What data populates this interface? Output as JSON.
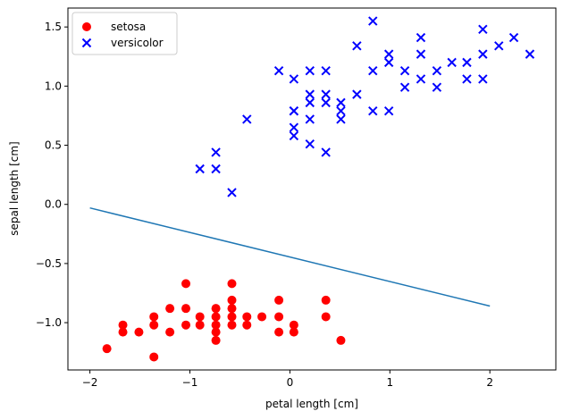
{
  "chart_data": {
    "type": "scatter",
    "title": "",
    "xlabel": "petal length [cm]",
    "ylabel": "sepal length [cm]",
    "xlim": [
      -2.22,
      2.66
    ],
    "ylim": [
      -1.4,
      1.66
    ],
    "xticks": [
      -2,
      -1,
      0,
      1,
      2
    ],
    "xtick_labels": [
      "−2",
      "−1",
      "0",
      "1",
      "2"
    ],
    "yticks": [
      -1.0,
      -0.5,
      0.0,
      0.5,
      1.0,
      1.5
    ],
    "ytick_labels": [
      "−1.0",
      "−0.5",
      "0.0",
      "0.5",
      "1.0",
      "1.5"
    ],
    "grid": false,
    "legend": "top-left",
    "series": [
      {
        "name": "setosa",
        "marker": "circle",
        "color": "#ff0000",
        "points": [
          [
            -1.83,
            -1.22
          ],
          [
            -1.67,
            -1.08
          ],
          [
            -1.67,
            -1.02
          ],
          [
            -1.51,
            -1.08
          ],
          [
            -1.36,
            -1.29
          ],
          [
            -1.36,
            -1.02
          ],
          [
            -1.36,
            -0.95
          ],
          [
            -1.2,
            -1.08
          ],
          [
            -1.2,
            -0.88
          ],
          [
            -1.04,
            -1.02
          ],
          [
            -1.04,
            -0.88
          ],
          [
            -1.04,
            -0.67
          ],
          [
            -0.9,
            -1.02
          ],
          [
            -0.9,
            -0.95
          ],
          [
            -0.74,
            -1.15
          ],
          [
            -0.74,
            -1.08
          ],
          [
            -0.74,
            -1.02
          ],
          [
            -0.74,
            -0.95
          ],
          [
            -0.74,
            -0.88
          ],
          [
            -0.58,
            -1.02
          ],
          [
            -0.58,
            -0.95
          ],
          [
            -0.58,
            -0.88
          ],
          [
            -0.58,
            -0.81
          ],
          [
            -0.58,
            -0.67
          ],
          [
            -0.43,
            -1.02
          ],
          [
            -0.43,
            -0.95
          ],
          [
            -0.28,
            -0.95
          ],
          [
            -0.11,
            -1.08
          ],
          [
            -0.11,
            -0.95
          ],
          [
            -0.11,
            -0.81
          ],
          [
            0.04,
            -1.08
          ],
          [
            0.04,
            -1.02
          ],
          [
            0.36,
            -0.95
          ],
          [
            0.36,
            -0.81
          ],
          [
            0.51,
            -1.15
          ]
        ]
      },
      {
        "name": "versicolor",
        "marker": "x",
        "color": "#0000ff",
        "points": [
          [
            -0.9,
            0.3
          ],
          [
            -0.74,
            0.3
          ],
          [
            -0.74,
            0.44
          ],
          [
            -0.58,
            0.1
          ],
          [
            -0.43,
            0.72
          ],
          [
            -0.11,
            1.13
          ],
          [
            0.04,
            0.58
          ],
          [
            0.04,
            0.65
          ],
          [
            0.04,
            0.79
          ],
          [
            0.04,
            0.79
          ],
          [
            0.04,
            1.06
          ],
          [
            0.2,
            0.51
          ],
          [
            0.2,
            0.72
          ],
          [
            0.2,
            0.86
          ],
          [
            0.2,
            0.93
          ],
          [
            0.2,
            1.13
          ],
          [
            0.36,
            0.44
          ],
          [
            0.36,
            0.86
          ],
          [
            0.36,
            0.93
          ],
          [
            0.36,
            1.13
          ],
          [
            0.51,
            0.72
          ],
          [
            0.51,
            0.79
          ],
          [
            0.51,
            0.86
          ],
          [
            0.67,
            0.93
          ],
          [
            0.67,
            1.34
          ],
          [
            0.83,
            0.79
          ],
          [
            0.83,
            1.13
          ],
          [
            0.83,
            1.55
          ],
          [
            0.99,
            0.79
          ],
          [
            0.99,
            1.2
          ],
          [
            0.99,
            1.27
          ],
          [
            1.15,
            0.99
          ],
          [
            1.15,
            1.13
          ],
          [
            1.31,
            1.06
          ],
          [
            1.31,
            1.27
          ],
          [
            1.31,
            1.41
          ],
          [
            1.47,
            0.99
          ],
          [
            1.47,
            1.13
          ],
          [
            1.62,
            1.2
          ],
          [
            1.77,
            1.06
          ],
          [
            1.77,
            1.2
          ],
          [
            1.93,
            1.06
          ],
          [
            1.93,
            1.27
          ],
          [
            1.93,
            1.48
          ],
          [
            2.09,
            1.34
          ],
          [
            2.24,
            1.41
          ],
          [
            2.4,
            1.27
          ]
        ]
      },
      {
        "name": "",
        "marker": "line",
        "color": "#1f77b4",
        "points": [
          [
            -2.0,
            -0.03
          ],
          [
            2.0,
            -0.86
          ]
        ]
      }
    ]
  }
}
